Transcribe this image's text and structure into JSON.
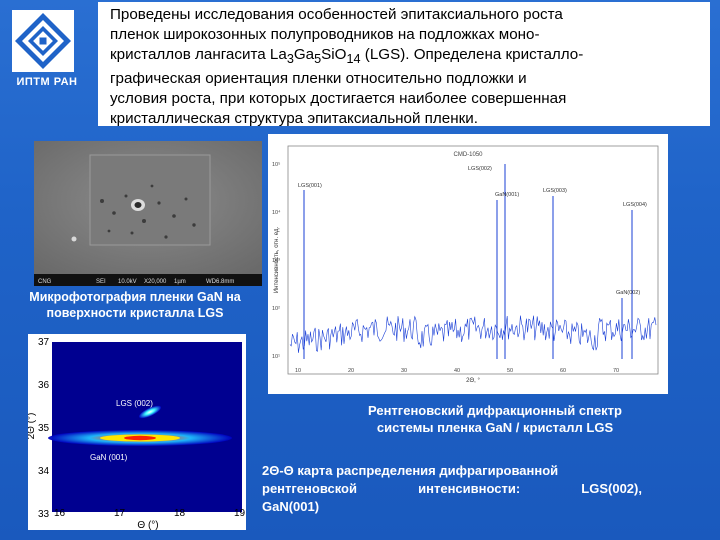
{
  "logo": {
    "caption": "ИПТМ РАН"
  },
  "intro": {
    "line1": "Проведены исследования особенностей эпитаксиального роста",
    "line2": "пленок широкозонных полупроводников на подложках моно-",
    "line3_pre": "кристаллов лангасита La",
    "line3_s1": "3",
    "line3_ga": "Ga",
    "line3_s2": "5",
    "line3_sio": "SiO",
    "line3_s3": "14",
    "line3_post": " (LGS). Определена кристалло-",
    "line4": "графическая ориентация пленки относительно подложки и",
    "line5": "условия роста, при которых достигается наиболее совершенная",
    "line6": "кристаллическая структура эпитаксиальной пленки."
  },
  "photo": {
    "caption_line1": "Микрофотография пленки GaN на",
    "caption_line2": "поверхности кристалла LGS",
    "footer": [
      "CNG",
      "SEI",
      "10.0kV",
      "X20,000",
      "1µm",
      "WD6.8mm"
    ]
  },
  "spectrum": {
    "title": "CMD-1050",
    "peak_labels": [
      "LGS(001)",
      "LGS(002)",
      "GaN(001)",
      "LGS(003)",
      "LGS(004)",
      "GaN(002)"
    ],
    "xlabel": "2Θ, °",
    "ylabel": "Интенсивность, отн. ед.",
    "x_ticks": [
      "10",
      "20",
      "30",
      "40",
      "50",
      "60",
      "70"
    ],
    "y_ticks": [
      "10⁵",
      "10⁴",
      "10³",
      "10²",
      "10¹"
    ],
    "caption_line1": "Рентгеновский дифракционный спектр",
    "caption_line2": "системы пленка GaN / кристалл LGS"
  },
  "map": {
    "x_ticks": [
      "16",
      "17",
      "18",
      "19"
    ],
    "y_ticks": [
      "37",
      "36",
      "35",
      "34",
      "33"
    ],
    "xlabel": "Θ (°)",
    "ylabel": "2Θ (°)",
    "label_top": "LGS (002)",
    "label_bottom": "GaN (001)",
    "caption_line1": "2Θ-Θ карта распределения дифрагированной",
    "caption_w1": "рентгеновской",
    "caption_w2": "интенсивности:",
    "caption_w3": "LGS(002),",
    "caption_line3": "GaN(001)"
  },
  "colors": {
    "background": "#1f63c8",
    "text_light": "#ffffff"
  }
}
